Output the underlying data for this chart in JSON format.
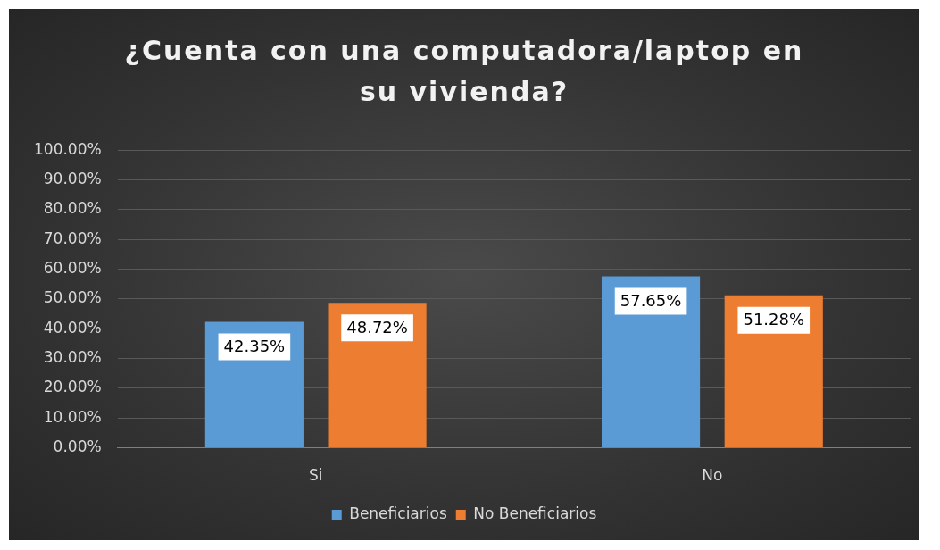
{
  "chart_data": {
    "type": "bar",
    "title": "¿Cuenta con una computadora/laptop en su vivienda?",
    "categories": [
      "Si",
      "No"
    ],
    "series": [
      {
        "name": "Beneficiarios",
        "color": "#5b9bd5",
        "values": [
          42.35,
          57.65
        ],
        "value_labels": [
          "42.35%",
          "57.65%"
        ]
      },
      {
        "name": "No Beneficiarios",
        "color": "#ed7d31",
        "values": [
          48.72,
          51.28
        ],
        "value_labels": [
          "48.72%",
          "51.28%"
        ]
      }
    ],
    "ylim": [
      0,
      100
    ],
    "yticks": [
      {
        "value": 0,
        "label": "0.00%"
      },
      {
        "value": 10,
        "label": "10.00%"
      },
      {
        "value": 20,
        "label": "20.00%"
      },
      {
        "value": 30,
        "label": "30.00%"
      },
      {
        "value": 40,
        "label": "40.00%"
      },
      {
        "value": 50,
        "label": "50.00%"
      },
      {
        "value": 60,
        "label": "60.00%"
      },
      {
        "value": 70,
        "label": "70.00%"
      },
      {
        "value": 80,
        "label": "80.00%"
      },
      {
        "value": 90,
        "label": "90.00%"
      },
      {
        "value": 100,
        "label": "100.00%"
      }
    ],
    "grid": "y",
    "legend": "bottom"
  }
}
